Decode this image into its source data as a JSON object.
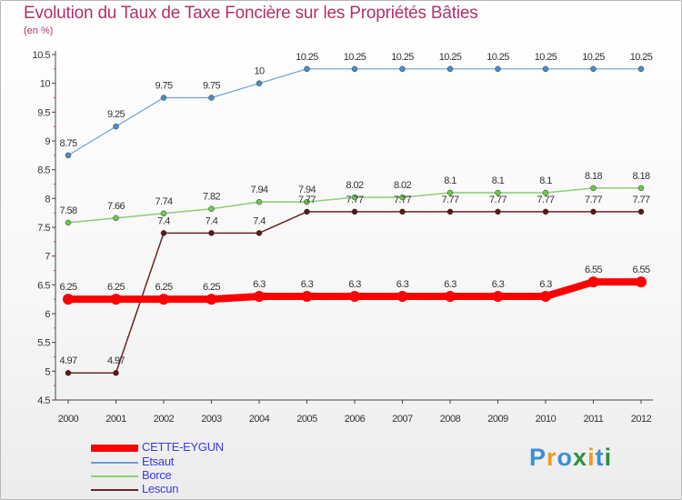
{
  "title": "Evolution du Taux de Taxe Foncière sur les Propriétés Bâties",
  "unit_label": "(en %)",
  "logo_text": "Proxiti",
  "chart_data": {
    "type": "line",
    "title": "Evolution du Taux de Taxe Foncière sur les Propriétés Bâties",
    "ylabel": "(en %)",
    "xlabel": "",
    "categories": [
      "2000",
      "2001",
      "2002",
      "2003",
      "2004",
      "2005",
      "2006",
      "2007",
      "2008",
      "2009",
      "2010",
      "2011",
      "2012"
    ],
    "ylim": [
      4.5,
      10.5
    ],
    "yticks": [
      "4.5",
      "5",
      "5.5",
      "6",
      "6.5",
      "7",
      "7.5",
      "8",
      "8.5",
      "9",
      "9.5",
      "10",
      "10.5"
    ],
    "grid": false,
    "legend_position": "bottom-left",
    "series": [
      {
        "name": "CETTE-EYGUN",
        "color": "#ff0000",
        "values": [
          6.25,
          6.25,
          6.25,
          6.25,
          6.3,
          6.3,
          6.3,
          6.3,
          6.3,
          6.3,
          6.3,
          6.55,
          6.55
        ],
        "labels": [
          "6.25",
          "6.25",
          "6.25",
          "6.25",
          "6.3",
          "6.3",
          "6.3",
          "6.3",
          "6.3",
          "6.3",
          "6.3",
          "6.55",
          "6.55"
        ]
      },
      {
        "name": "Etsaut",
        "color": "#6aa0d0",
        "values": [
          8.75,
          9.25,
          9.75,
          9.75,
          10,
          10.25,
          10.25,
          10.25,
          10.25,
          10.25,
          10.25,
          10.25,
          10.25
        ],
        "labels": [
          "8.75",
          "9.25",
          "9.75",
          "9.75",
          "10",
          "10.25",
          "10.25",
          "10.25",
          "10.25",
          "10.25",
          "10.25",
          "10.25",
          "10.25"
        ]
      },
      {
        "name": "Borce",
        "color": "#88d070",
        "values": [
          7.58,
          7.66,
          7.74,
          7.82,
          7.94,
          7.94,
          8.02,
          8.02,
          8.1,
          8.1,
          8.1,
          8.18,
          8.18
        ],
        "labels": [
          "7.58",
          "7.66",
          "7.74",
          "7.82",
          "7.94",
          "7.94",
          "8.02",
          "8.02",
          "8.1",
          "8.1",
          "8.1",
          "8.18",
          "8.18"
        ]
      },
      {
        "name": "Lescun",
        "color": "#6b2323",
        "values": [
          4.97,
          4.97,
          7.4,
          7.4,
          7.4,
          7.77,
          7.77,
          7.77,
          7.77,
          7.77,
          7.77,
          7.77,
          7.77
        ],
        "labels": [
          "4.97",
          "4.97",
          "7.4",
          "7.4",
          "7.4",
          "7.77",
          "7.77",
          "7.77",
          "7.77",
          "7.77",
          "7.77",
          "7.77",
          "7.77"
        ]
      }
    ]
  }
}
